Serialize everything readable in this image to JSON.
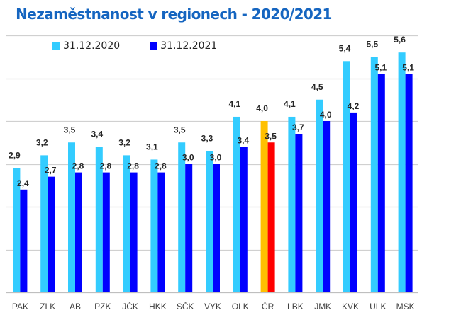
{
  "chart_data": {
    "type": "bar",
    "title": "Nezaměstnanost v regionech - 2020/2021",
    "xlabel": "",
    "ylabel": "",
    "ylim": [
      0,
      6
    ],
    "grid": true,
    "legend_position": "top-left",
    "categories": [
      "PAK",
      "ZLK",
      "AB",
      "PZK",
      "JČK",
      "HKK",
      "SČK",
      "VYK",
      "OLK",
      "ČR",
      "LBK",
      "JMK",
      "KVK",
      "ULK",
      "MSK"
    ],
    "series": [
      {
        "name": "31.12.2020",
        "color": "#33CCFF",
        "values": [
          2.9,
          3.2,
          3.5,
          3.4,
          3.2,
          3.1,
          3.5,
          3.3,
          4.1,
          4.0,
          4.1,
          4.5,
          5.4,
          5.5,
          5.6
        ],
        "labels": [
          "2,9",
          "3,2",
          "3,5",
          "3,4",
          "3,2",
          "3,1",
          "3,5",
          "3,3",
          "4,1",
          "4,0",
          "4,1",
          "4,5",
          "5,4",
          "5,5",
          "5,6"
        ]
      },
      {
        "name": "31.12.2021",
        "color": "#0000FF",
        "values": [
          2.4,
          2.7,
          2.8,
          2.8,
          2.8,
          2.8,
          3.0,
          3.0,
          3.4,
          3.5,
          3.7,
          4.0,
          4.2,
          5.1,
          5.1
        ],
        "labels": [
          "2,4",
          "2,7",
          "2,8",
          "2,8",
          "2,8",
          "2,8",
          "3,0",
          "3,0",
          "3,4",
          "3,5",
          "3,7",
          "4,0",
          "4,2",
          "5,1",
          "5,1"
        ]
      }
    ],
    "highlight": {
      "category": "ČR",
      "colors": [
        "#FFC000",
        "#FF0000"
      ]
    }
  }
}
